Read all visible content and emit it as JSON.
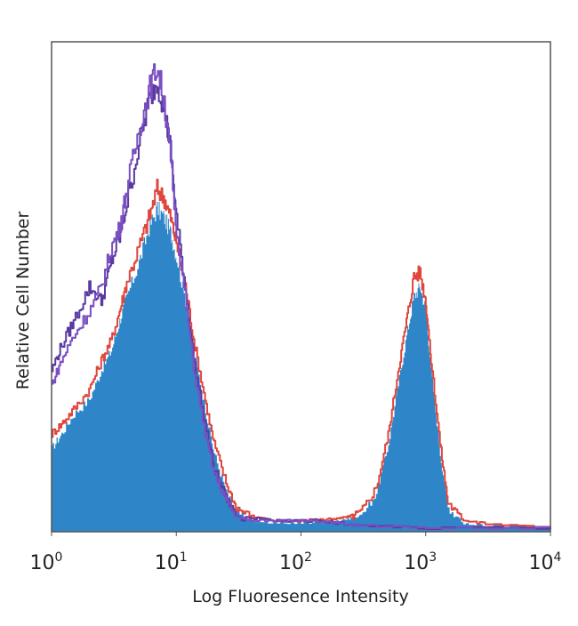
{
  "chart_data": {
    "type": "area",
    "title": "",
    "xlabel": "Log Fluoresence Intensity",
    "ylabel": "Relative Cell Number",
    "xscale": "log",
    "xlim": [
      1,
      10000
    ],
    "ylim": [
      0,
      1
    ],
    "grid": false,
    "legend": "none",
    "x_ticks": [
      {
        "base": "10",
        "exp": "0"
      },
      {
        "base": "10",
        "exp": "1"
      },
      {
        "base": "10",
        "exp": "2"
      },
      {
        "base": "10",
        "exp": "3"
      },
      {
        "base": "10",
        "exp": "4"
      }
    ],
    "series": [
      {
        "style": "filled",
        "color": "#2e86c8",
        "x": [
          1,
          1.2,
          1.5,
          2,
          2.5,
          3,
          3.5,
          4,
          5,
          6,
          7,
          8,
          9,
          10,
          12,
          14,
          17,
          20,
          25,
          30,
          40,
          60,
          100,
          150,
          200,
          250,
          300,
          400,
          500,
          600,
          700,
          800,
          900,
          1000,
          1100,
          1300,
          1500,
          2000,
          3000,
          10000
        ],
        "values": [
          0.17,
          0.2,
          0.24,
          0.27,
          0.33,
          0.37,
          0.43,
          0.48,
          0.55,
          0.62,
          0.66,
          0.64,
          0.61,
          0.56,
          0.46,
          0.36,
          0.25,
          0.16,
          0.08,
          0.04,
          0.02,
          0.015,
          0.015,
          0.018,
          0.02,
          0.025,
          0.03,
          0.08,
          0.18,
          0.3,
          0.4,
          0.48,
          0.5,
          0.45,
          0.33,
          0.16,
          0.05,
          0.015,
          0.01,
          0.005
        ]
      },
      {
        "style": "line",
        "color": "#e0463c",
        "x": [
          1,
          1.2,
          1.5,
          2,
          2.5,
          3,
          3.5,
          4,
          5,
          6,
          7,
          8,
          9,
          10,
          12,
          14,
          17,
          20,
          25,
          30,
          40,
          60,
          100,
          150,
          200,
          250,
          300,
          400,
          500,
          600,
          700,
          800,
          900,
          1000,
          1100,
          1300,
          1500,
          2000,
          3000,
          10000
        ],
        "values": [
          0.2,
          0.22,
          0.25,
          0.29,
          0.35,
          0.39,
          0.45,
          0.51,
          0.58,
          0.64,
          0.7,
          0.68,
          0.64,
          0.59,
          0.49,
          0.38,
          0.27,
          0.18,
          0.1,
          0.05,
          0.03,
          0.02,
          0.02,
          0.022,
          0.025,
          0.03,
          0.04,
          0.09,
          0.2,
          0.33,
          0.43,
          0.52,
          0.53,
          0.47,
          0.35,
          0.18,
          0.06,
          0.02,
          0.015,
          0.005
        ]
      },
      {
        "style": "line",
        "color": "#5b3aa0",
        "x": [
          1,
          1.2,
          1.5,
          2,
          2.5,
          3,
          3.5,
          4,
          5,
          6,
          7,
          8,
          9,
          10,
          12,
          14,
          17,
          20,
          25,
          30,
          40,
          60,
          100,
          150,
          200,
          300,
          1000,
          10000
        ],
        "values": [
          0.33,
          0.38,
          0.43,
          0.5,
          0.47,
          0.55,
          0.6,
          0.67,
          0.79,
          0.88,
          0.92,
          0.86,
          0.78,
          0.64,
          0.48,
          0.34,
          0.22,
          0.13,
          0.07,
          0.035,
          0.025,
          0.02,
          0.02,
          0.02,
          0.015,
          0.01,
          0.005,
          0.005
        ]
      },
      {
        "style": "line",
        "color": "#7a4fc2",
        "x": [
          1,
          1.2,
          1.5,
          2,
          2.5,
          3,
          3.5,
          4,
          5,
          6,
          7,
          8,
          9,
          10,
          12,
          14,
          17,
          20,
          25,
          30,
          40,
          60,
          100,
          150,
          200,
          300,
          1000,
          10000
        ],
        "values": [
          0.3,
          0.35,
          0.4,
          0.45,
          0.5,
          0.58,
          0.62,
          0.7,
          0.82,
          0.9,
          0.95,
          0.88,
          0.76,
          0.62,
          0.46,
          0.32,
          0.2,
          0.12,
          0.065,
          0.03,
          0.02,
          0.02,
          0.02,
          0.018,
          0.015,
          0.01,
          0.005,
          0.005
        ]
      }
    ]
  }
}
